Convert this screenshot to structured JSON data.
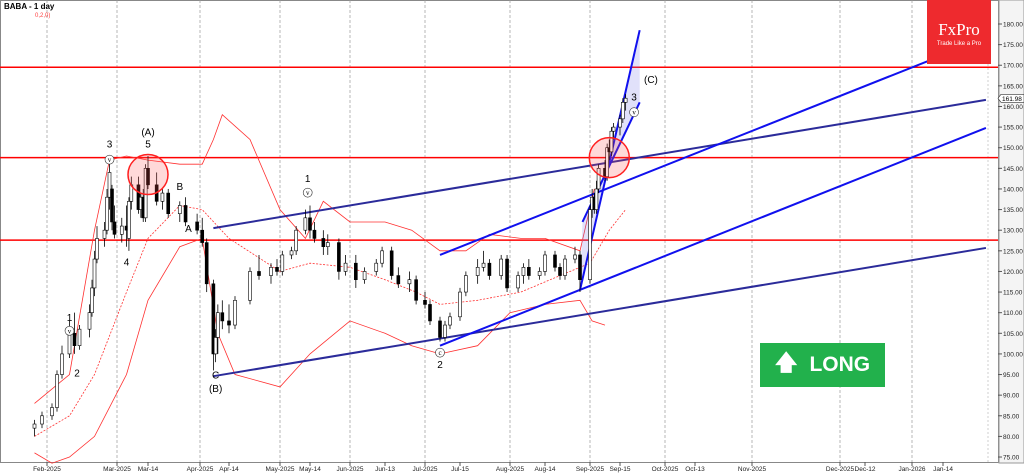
{
  "header": {
    "title": "BABA - 1 day",
    "indicator": "0,2,0)"
  },
  "logo": {
    "brand": "FxPro",
    "tagline": "Trade Like a Pro"
  },
  "signal": {
    "label": "LONG",
    "icon": "arrow-up-icon",
    "color": "#22b14c"
  },
  "chart_data": {
    "type": "candlestick",
    "symbol": "BABA",
    "timeframe": "1 day",
    "ylim": [
      73,
      185
    ],
    "y_ticks": [
      75,
      80,
      85,
      90,
      95,
      100,
      105,
      110,
      115,
      120,
      125,
      130,
      135,
      140,
      145,
      150,
      155,
      160,
      165,
      170,
      175,
      180
    ],
    "last_price": "161.98",
    "x_ticks": [
      {
        "label": "Feb-2025",
        "date": "2025-02-01"
      },
      {
        "label": "Mar-2025",
        "date": "2025-03-01"
      },
      {
        "label": "Mar-14",
        "date": "2025-03-14"
      },
      {
        "label": "Apr-2025",
        "date": "2025-04-01"
      },
      {
        "label": "Apr-14",
        "date": "2025-04-14"
      },
      {
        "label": "May-2025",
        "date": "2025-05-01"
      },
      {
        "label": "May-14",
        "date": "2025-05-14"
      },
      {
        "label": "Jun-2025",
        "date": "2025-06-01"
      },
      {
        "label": "Jun-13",
        "date": "2025-06-13"
      },
      {
        "label": "Jul-2025",
        "date": "2025-07-01"
      },
      {
        "label": "Jul-15",
        "date": "2025-07-15"
      },
      {
        "label": "Aug-2025",
        "date": "2025-08-01"
      },
      {
        "label": "Aug-14",
        "date": "2025-08-14"
      },
      {
        "label": "Sep-2025",
        "date": "2025-09-01"
      },
      {
        "label": "Sep-15",
        "date": "2025-09-15"
      },
      {
        "label": "Oct-2025",
        "date": "2025-10-01"
      },
      {
        "label": "Oct-13",
        "date": "2025-10-13"
      },
      {
        "label": "Nov-2025",
        "date": "2025-11-01"
      },
      {
        "label": "Dec-2025",
        "date": "2025-12-01"
      },
      {
        "label": "Dec-12",
        "date": "2025-12-12"
      },
      {
        "label": "Jan-2026",
        "date": "2026-01-01"
      },
      {
        "label": "Jan-14",
        "date": "2026-01-14"
      }
    ],
    "candles": [
      [
        "2025-01-27",
        82,
        84,
        80,
        83
      ],
      [
        "2025-01-30",
        83,
        86,
        82,
        85
      ],
      [
        "2025-02-03",
        85,
        88,
        84,
        87
      ],
      [
        "2025-02-05",
        87,
        96,
        86,
        95
      ],
      [
        "2025-02-07",
        95,
        102,
        94,
        100
      ],
      [
        "2025-02-10",
        100,
        108,
        99,
        105
      ],
      [
        "2025-02-12",
        105,
        110,
        100,
        102
      ],
      [
        "2025-02-14",
        102,
        107,
        101,
        106
      ],
      [
        "2025-02-18",
        106,
        112,
        104,
        110
      ],
      [
        "2025-02-19",
        110,
        118,
        109,
        116
      ],
      [
        "2025-02-20",
        116,
        125,
        114,
        123
      ],
      [
        "2025-02-21",
        123,
        131,
        122,
        128
      ],
      [
        "2025-02-24",
        128,
        132,
        126,
        130
      ],
      [
        "2025-02-25",
        130,
        140,
        129,
        138
      ],
      [
        "2025-02-26",
        138,
        147,
        135,
        144
      ],
      [
        "2025-02-27",
        140,
        141,
        130,
        132
      ],
      [
        "2025-02-28",
        132,
        136,
        128,
        129
      ],
      [
        "2025-03-03",
        129,
        133,
        127,
        131
      ],
      [
        "2025-03-05",
        131,
        136,
        126,
        130
      ],
      [
        "2025-03-06",
        128,
        138,
        125,
        137
      ],
      [
        "2025-03-07",
        137,
        143,
        135,
        141
      ],
      [
        "2025-03-10",
        141,
        143,
        134,
        135
      ],
      [
        "2025-03-11",
        135,
        139,
        133,
        138
      ],
      [
        "2025-03-12",
        138,
        140,
        132,
        133
      ],
      [
        "2025-03-13",
        133,
        146,
        132,
        145
      ],
      [
        "2025-03-14",
        145,
        148,
        140,
        141
      ],
      [
        "2025-03-17",
        141,
        144,
        136,
        137
      ],
      [
        "2025-03-19",
        137,
        140,
        135,
        139
      ],
      [
        "2025-03-21",
        139,
        140,
        133,
        134
      ],
      [
        "2025-03-25",
        134,
        137,
        132,
        136
      ],
      [
        "2025-03-27",
        136,
        138,
        131,
        132
      ],
      [
        "2025-03-31",
        132,
        134,
        129,
        130
      ],
      [
        "2025-04-02",
        130,
        133,
        126,
        127
      ],
      [
        "2025-04-04",
        127,
        128,
        115,
        117
      ],
      [
        "2025-04-07",
        117,
        118,
        96,
        100
      ],
      [
        "2025-04-08",
        100,
        106,
        98,
        104
      ],
      [
        "2025-04-09",
        104,
        112,
        100,
        110
      ],
      [
        "2025-04-11",
        110,
        113,
        106,
        108
      ],
      [
        "2025-04-14",
        108,
        112,
        105,
        107
      ],
      [
        "2025-04-16",
        107,
        114,
        106,
        113
      ],
      [
        "2025-04-21",
        113,
        121,
        112,
        120
      ],
      [
        "2025-04-24",
        120,
        124,
        118,
        119
      ],
      [
        "2025-04-28",
        119,
        122,
        117,
        121
      ],
      [
        "2025-04-30",
        121,
        123,
        119,
        120
      ],
      [
        "2025-05-02",
        120,
        125,
        119,
        124
      ],
      [
        "2025-05-06",
        124,
        126,
        123,
        125
      ],
      [
        "2025-05-08",
        125,
        131,
        124,
        130
      ],
      [
        "2025-05-12",
        130,
        135,
        129,
        133
      ],
      [
        "2025-05-14",
        133,
        136,
        128,
        130
      ],
      [
        "2025-05-16",
        130,
        132,
        127,
        128
      ],
      [
        "2025-05-20",
        128,
        130,
        124,
        126
      ],
      [
        "2025-05-22",
        126,
        129,
        124,
        127
      ],
      [
        "2025-05-27",
        127,
        128,
        118,
        120
      ],
      [
        "2025-05-30",
        120,
        124,
        119,
        122
      ],
      [
        "2025-06-03",
        122,
        124,
        116,
        118
      ],
      [
        "2025-06-06",
        118,
        121,
        117,
        120
      ],
      [
        "2025-06-10",
        120,
        123,
        119,
        122
      ],
      [
        "2025-06-12",
        122,
        126,
        121,
        125
      ],
      [
        "2025-06-16",
        125,
        126,
        118,
        119
      ],
      [
        "2025-06-19",
        119,
        121,
        116,
        117
      ],
      [
        "2025-06-24",
        117,
        120,
        115,
        118
      ],
      [
        "2025-06-27",
        118,
        119,
        112,
        113
      ],
      [
        "2025-07-01",
        113,
        115,
        111,
        112
      ],
      [
        "2025-07-03",
        112,
        113,
        107,
        108
      ],
      [
        "2025-07-07",
        108,
        109,
        103,
        104
      ],
      [
        "2025-07-09",
        104,
        108,
        103,
        107
      ],
      [
        "2025-07-11",
        107,
        110,
        106,
        109
      ],
      [
        "2025-07-15",
        109,
        116,
        108,
        115
      ],
      [
        "2025-07-17",
        115,
        120,
        114,
        119
      ],
      [
        "2025-07-21",
        119,
        123,
        117,
        121
      ],
      [
        "2025-07-23",
        121,
        125,
        120,
        122
      ],
      [
        "2025-07-25",
        122,
        123,
        118,
        119
      ],
      [
        "2025-07-29",
        119,
        124,
        118,
        123
      ],
      [
        "2025-07-31",
        123,
        124,
        115,
        116
      ],
      [
        "2025-08-04",
        116,
        120,
        115,
        119
      ],
      [
        "2025-08-06",
        119,
        122,
        117,
        121
      ],
      [
        "2025-08-08",
        121,
        123,
        118,
        119
      ],
      [
        "2025-08-12",
        119,
        121,
        118,
        120
      ],
      [
        "2025-08-14",
        120,
        125,
        119,
        124
      ],
      [
        "2025-08-18",
        124,
        125,
        120,
        121
      ],
      [
        "2025-08-20",
        121,
        122,
        118,
        119
      ],
      [
        "2025-08-22",
        119,
        124,
        118,
        123
      ],
      [
        "2025-08-26",
        123,
        126,
        122,
        124
      ],
      [
        "2025-08-28",
        124,
        125,
        115,
        118
      ],
      [
        "2025-09-01",
        118,
        136,
        117,
        135
      ],
      [
        "2025-09-02",
        135,
        140,
        133,
        138
      ],
      [
        "2025-09-03",
        138,
        139,
        134,
        135
      ],
      [
        "2025-09-04",
        135,
        142,
        134,
        140
      ],
      [
        "2025-09-05",
        140,
        146,
        139,
        145
      ],
      [
        "2025-09-08",
        145,
        147,
        142,
        143
      ],
      [
        "2025-09-09",
        143,
        151,
        142,
        150
      ],
      [
        "2025-09-10",
        150,
        152,
        147,
        149
      ],
      [
        "2025-09-11",
        149,
        155,
        148,
        154
      ],
      [
        "2025-09-12",
        154,
        156,
        152,
        155
      ],
      [
        "2025-09-15",
        155,
        158,
        153,
        157
      ],
      [
        "2025-09-16",
        157,
        162,
        156,
        161
      ],
      [
        "2025-09-17",
        161,
        163,
        159,
        162
      ]
    ],
    "bollinger": {
      "color": "#ff3030",
      "upper": [
        [
          "2025-01-27",
          88
        ],
        [
          "2025-02-10",
          95
        ],
        [
          "2025-02-20",
          130
        ],
        [
          "2025-02-26",
          147
        ],
        [
          "2025-03-05",
          148
        ],
        [
          "2025-03-14",
          147
        ],
        [
          "2025-03-25",
          146
        ],
        [
          "2025-04-02",
          146
        ],
        [
          "2025-04-07",
          152
        ],
        [
          "2025-04-11",
          158
        ],
        [
          "2025-04-21",
          152
        ],
        [
          "2025-05-01",
          135
        ],
        [
          "2025-05-12",
          128
        ],
        [
          "2025-05-20",
          137
        ],
        [
          "2025-06-01",
          132
        ],
        [
          "2025-06-13",
          132
        ],
        [
          "2025-06-25",
          130
        ],
        [
          "2025-07-07",
          125
        ],
        [
          "2025-07-17",
          125
        ],
        [
          "2025-07-25",
          129
        ],
        [
          "2025-08-05",
          128
        ],
        [
          "2025-08-14",
          128
        ],
        [
          "2025-08-28",
          125
        ],
        [
          "2025-09-03",
          140
        ]
      ],
      "middle": [
        [
          "2025-01-27",
          80
        ],
        [
          "2025-02-10",
          85
        ],
        [
          "2025-02-20",
          95
        ],
        [
          "2025-03-05",
          115
        ],
        [
          "2025-03-14",
          128
        ],
        [
          "2025-03-25",
          136
        ],
        [
          "2025-04-02",
          135
        ],
        [
          "2025-04-14",
          128
        ],
        [
          "2025-05-01",
          120
        ],
        [
          "2025-05-14",
          122
        ],
        [
          "2025-06-01",
          121
        ],
        [
          "2025-06-13",
          118
        ],
        [
          "2025-06-27",
          115
        ],
        [
          "2025-07-07",
          112
        ],
        [
          "2025-07-21",
          113
        ],
        [
          "2025-08-05",
          115
        ],
        [
          "2025-08-20",
          119
        ],
        [
          "2025-09-01",
          122
        ],
        [
          "2025-09-10",
          130
        ],
        [
          "2025-09-17",
          135
        ]
      ],
      "lower": [
        [
          "2025-01-27",
          76
        ],
        [
          "2025-02-03",
          73.5
        ],
        [
          "2025-02-10",
          75
        ],
        [
          "2025-02-20",
          80
        ],
        [
          "2025-03-05",
          95
        ],
        [
          "2025-03-14",
          113
        ],
        [
          "2025-03-25",
          126
        ],
        [
          "2025-04-02",
          128
        ],
        [
          "2025-04-09",
          105
        ],
        [
          "2025-04-16",
          95
        ],
        [
          "2025-05-01",
          92
        ],
        [
          "2025-05-14",
          100
        ],
        [
          "2025-06-01",
          108
        ],
        [
          "2025-06-13",
          105
        ],
        [
          "2025-06-25",
          102
        ],
        [
          "2025-07-07",
          100
        ],
        [
          "2025-07-21",
          102
        ],
        [
          "2025-08-01",
          110
        ],
        [
          "2025-08-14",
          112
        ],
        [
          "2025-08-28",
          113
        ],
        [
          "2025-09-02",
          108
        ],
        [
          "2025-09-08",
          107
        ]
      ]
    },
    "horizontal_levels": {
      "color": "#ff0000",
      "values": [
        169.5,
        147.6,
        127.6
      ]
    },
    "trendlines": [
      {
        "color": "#2b2b9a",
        "from": [
          "2025-04-07",
          94.6
        ],
        "to": [
          "2026-02-01",
          125.7
        ]
      },
      {
        "color": "#2b2b9a",
        "from": [
          "2025-04-07",
          130.5
        ],
        "to": [
          "2026-02-01",
          161.6
        ]
      },
      {
        "color": "#1010ee",
        "from": [
          "2025-07-07",
          102
        ],
        "to": [
          "2026-02-01",
          154.8
        ]
      },
      {
        "color": "#1010ee",
        "from": [
          "2025-07-07",
          124
        ],
        "to": [
          "2026-02-01",
          176.6
        ]
      },
      {
        "color": "#1010ee",
        "from": [
          "2025-08-28",
          115.5
        ],
        "to": [
          "2025-09-22",
          178.5
        ]
      },
      {
        "color": "#1010ee",
        "from": [
          "2025-08-29",
          132
        ],
        "to": [
          "2025-09-22",
          161
        ]
      }
    ],
    "circles": [
      {
        "date": "2025-03-14",
        "price": 143.5
      },
      {
        "date": "2025-09-10",
        "price": 147.6
      }
    ],
    "wave_labels": [
      {
        "text": "1",
        "date": "2025-02-10",
        "price": 108,
        "circled": false
      },
      {
        "text": "v",
        "date": "2025-02-10",
        "price": 105,
        "circled": true
      },
      {
        "text": "2",
        "date": "2025-02-13",
        "price": 94.5,
        "circled": false
      },
      {
        "text": "3",
        "date": "2025-02-26",
        "price": 150,
        "circled": false
      },
      {
        "text": "v",
        "date": "2025-02-26",
        "price": 146.5,
        "circled": true
      },
      {
        "text": "4",
        "date": "2025-03-05",
        "price": 121.5,
        "circled": false
      },
      {
        "text": "(A)",
        "date": "2025-03-14",
        "price": 153,
        "circled": false
      },
      {
        "text": "5",
        "date": "2025-03-14",
        "price": 150,
        "circled": false
      },
      {
        "text": "B",
        "date": "2025-03-25",
        "price": 139.7,
        "circled": false
      },
      {
        "text": "A",
        "date": "2025-03-28",
        "price": 129.6,
        "circled": false
      },
      {
        "text": "C",
        "date": "2025-04-08",
        "price": 94,
        "circled": false
      },
      {
        "text": "(B)",
        "date": "2025-04-08",
        "price": 90.8,
        "circled": false
      },
      {
        "text": "1",
        "date": "2025-05-13",
        "price": 141.7,
        "circled": false
      },
      {
        "text": "v",
        "date": "2025-05-13",
        "price": 138.5,
        "circled": true
      },
      {
        "text": "2",
        "date": "2025-07-07",
        "price": 96.6,
        "circled": false
      },
      {
        "text": "c",
        "date": "2025-07-07",
        "price": 99.7,
        "circled": true
      },
      {
        "text": "3",
        "date": "2025-09-20",
        "price": 161.5,
        "circled": false
      },
      {
        "text": "v",
        "date": "2025-09-20",
        "price": 158,
        "circled": true
      },
      {
        "text": "(C)",
        "date": "2025-09-26",
        "price": 165.7,
        "circled": false
      }
    ]
  }
}
